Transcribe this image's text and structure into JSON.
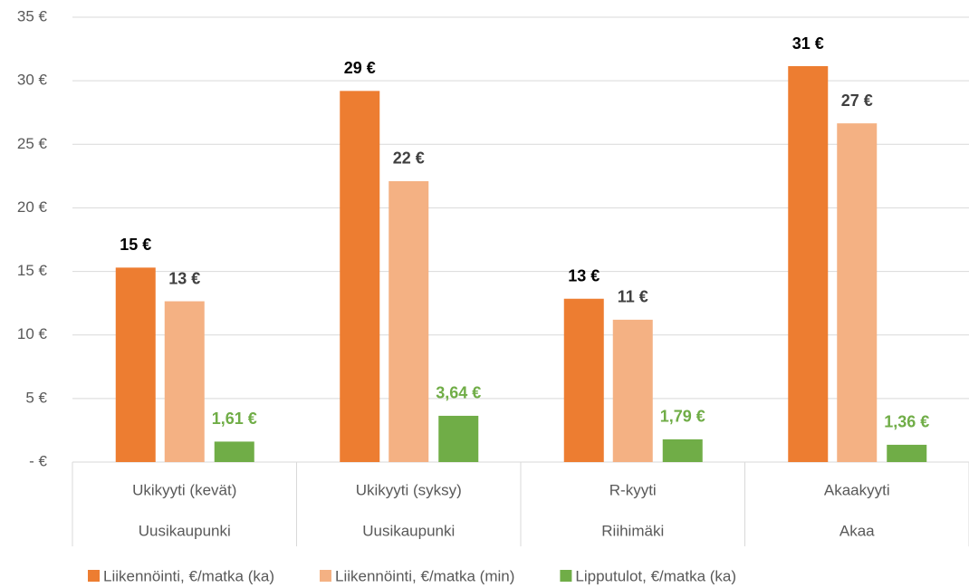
{
  "chart_data": {
    "type": "bar",
    "categories": [
      [
        "Ukikyyti (kevät)",
        "Uusikaupunki"
      ],
      [
        "Ukikyyti (syksy)",
        "Uusikaupunki"
      ],
      [
        "R-kyyti",
        "Riihimäki"
      ],
      [
        "Akaakyyti",
        "Akaa"
      ]
    ],
    "series": [
      {
        "name": "Liikennöinti, €/matka (ka)",
        "color": "#ed7d31",
        "label_color": "#000000",
        "values": [
          15.3,
          29.2,
          12.85,
          31.15
        ],
        "value_labels": [
          "15 €",
          "29 €",
          "13 €",
          "31 €"
        ]
      },
      {
        "name": "Liikennöinti, €/matka (min)",
        "color": "#f4b183",
        "label_color": "#404040",
        "values": [
          12.65,
          22.1,
          11.2,
          26.65
        ],
        "value_labels": [
          "13 €",
          "22 €",
          "11 €",
          "27 €"
        ]
      },
      {
        "name": "Lipputulot, €/matka (ka)",
        "color": "#70ad47",
        "label_color": "#70ad47",
        "values": [
          1.61,
          3.64,
          1.79,
          1.36
        ],
        "value_labels": [
          "1,61 €",
          "3,64 €",
          "1,79 €",
          "1,36 €"
        ]
      }
    ],
    "ylim": [
      0,
      35
    ],
    "yticks": [
      {
        "value": 0,
        "label": "- €"
      },
      {
        "value": 5,
        "label": "5 €"
      },
      {
        "value": 10,
        "label": "10 €"
      },
      {
        "value": 15,
        "label": "15 €"
      },
      {
        "value": 20,
        "label": "20 €"
      },
      {
        "value": 25,
        "label": "25 €"
      },
      {
        "value": 30,
        "label": "30 €"
      },
      {
        "value": 35,
        "label": "35 €"
      }
    ],
    "grid": true,
    "legend": "bottom"
  }
}
